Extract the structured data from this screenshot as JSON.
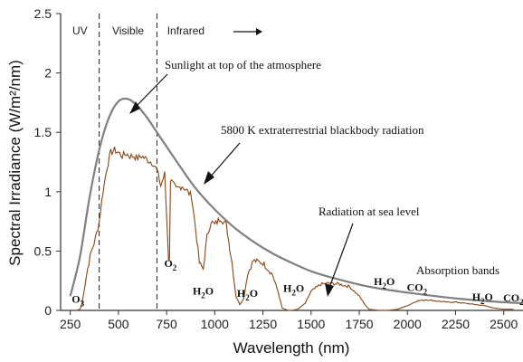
{
  "chart_data": {
    "type": "line",
    "title": "",
    "xlabel": "Wavelength (nm)",
    "ylabel": "Spectral Irradiance (W/m²/nm)",
    "xlim": [
      200,
      2600
    ],
    "ylim": [
      0,
      2.5
    ],
    "xticks": [
      250,
      500,
      750,
      1000,
      1250,
      1500,
      1750,
      2000,
      2250,
      2500
    ],
    "yticks": [
      0,
      0.5,
      1,
      1.5,
      2,
      2.5
    ],
    "grid": false,
    "region_dividers": [
      400,
      700
    ],
    "region_labels": [
      {
        "text": "UV",
        "x": 300
      },
      {
        "text": "Visible",
        "x": 550
      },
      {
        "text": "Infrared",
        "x": 850
      }
    ],
    "series": [
      {
        "name": "5800 K extraterrestrial blackbody radiation",
        "color": "#808080",
        "x": [
          250,
          300,
          350,
          400,
          450,
          500,
          550,
          600,
          650,
          700,
          800,
          900,
          1000,
          1100,
          1200,
          1300,
          1400,
          1500,
          1600,
          1800,
          2000,
          2200,
          2400,
          2600
        ],
        "values": [
          0.12,
          0.45,
          0.95,
          1.35,
          1.62,
          1.76,
          1.78,
          1.72,
          1.62,
          1.5,
          1.26,
          1.03,
          0.85,
          0.7,
          0.58,
          0.48,
          0.4,
          0.33,
          0.28,
          0.2,
          0.15,
          0.11,
          0.08,
          0.06
        ]
      },
      {
        "name": "Radiation at sea level",
        "color": "#8B4513",
        "x": [
          280,
          300,
          310,
          320,
          340,
          360,
          380,
          400,
          420,
          440,
          460,
          480,
          500,
          520,
          540,
          560,
          580,
          600,
          620,
          640,
          660,
          680,
          700,
          720,
          740,
          760,
          765,
          770,
          800,
          830,
          860,
          880,
          900,
          920,
          940,
          960,
          980,
          1000,
          1030,
          1060,
          1090,
          1110,
          1130,
          1150,
          1170,
          1200,
          1250,
          1300,
          1330,
          1350,
          1380,
          1400,
          1430,
          1470,
          1500,
          1550,
          1600,
          1650,
          1700,
          1750,
          1780,
          1800,
          1850,
          1900,
          1950,
          2000,
          2050,
          2100,
          2150,
          2200,
          2250,
          2300,
          2350,
          2400,
          2450,
          2500,
          2550
        ],
        "values": [
          0.0,
          0.01,
          0.05,
          0.15,
          0.35,
          0.5,
          0.6,
          0.75,
          1.0,
          1.2,
          1.33,
          1.35,
          1.33,
          1.3,
          1.32,
          1.3,
          1.3,
          1.28,
          1.3,
          1.28,
          1.26,
          1.24,
          1.18,
          1.05,
          1.15,
          0.45,
          0.42,
          1.1,
          1.02,
          1.05,
          1.0,
          0.96,
          0.7,
          0.4,
          0.35,
          0.62,
          0.75,
          0.72,
          0.78,
          0.72,
          0.4,
          0.12,
          0.05,
          0.1,
          0.3,
          0.42,
          0.4,
          0.3,
          0.15,
          0.02,
          0.0,
          0.0,
          0.01,
          0.06,
          0.16,
          0.22,
          0.23,
          0.22,
          0.2,
          0.12,
          0.05,
          0.01,
          0.0,
          0.0,
          0.01,
          0.04,
          0.08,
          0.09,
          0.08,
          0.07,
          0.07,
          0.06,
          0.05,
          0.04,
          0.02,
          0.01,
          0.01
        ]
      }
    ],
    "annotations": [
      {
        "text": "Sunlight at top of the atmosphere"
      },
      {
        "text": "5800 K extraterrestrial blackbody radiation"
      },
      {
        "text": "Radiation at sea level"
      },
      {
        "text": "Absorption bands"
      }
    ],
    "absorption_labels": [
      {
        "main": "O",
        "sub": "3",
        "x": 290,
        "y": 0.05
      },
      {
        "main": "O",
        "sub": "2",
        "x": 770,
        "y": 0.35
      },
      {
        "main": "H",
        "sub": "2",
        "tail": "O",
        "x": 940,
        "y": 0.12
      },
      {
        "main": "H",
        "sub": "2",
        "tail": "O",
        "x": 1170,
        "y": 0.1
      },
      {
        "main": "H",
        "sub": "2",
        "tail": "O",
        "x": 1410,
        "y": 0.14
      },
      {
        "main": "H",
        "sub": "2",
        "tail": "O",
        "x": 1880,
        "y": 0.2
      },
      {
        "main": "CO",
        "sub": "2",
        "x": 2050,
        "y": 0.15
      },
      {
        "main": "H",
        "sub": "2",
        "tail": "O",
        "x": 2390,
        "y": 0.07
      },
      {
        "main": "CO",
        "sub": "2",
        "x": 2550,
        "y": 0.06
      }
    ]
  }
}
